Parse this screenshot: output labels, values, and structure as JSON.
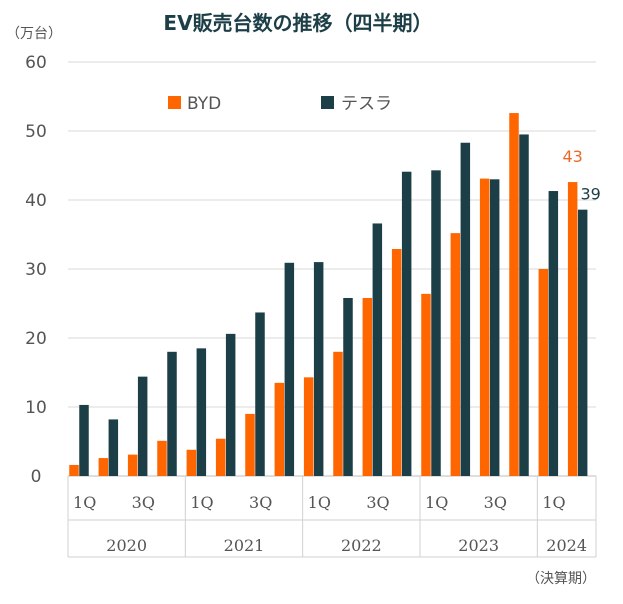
{
  "chart_data": {
    "type": "bar",
    "title": "EV販売台数の推移（四半期）",
    "ylabel": "（万台）",
    "xlabel": "（決算期）",
    "ylim": [
      0,
      60
    ],
    "yticks": [
      0,
      10,
      20,
      30,
      40,
      50,
      60
    ],
    "grid": true,
    "legend_position": "top-left",
    "categories": [
      "2020 1Q",
      "2020 2Q",
      "2020 3Q",
      "2020 4Q",
      "2021 1Q",
      "2021 2Q",
      "2021 3Q",
      "2021 4Q",
      "2022 1Q",
      "2022 2Q",
      "2022 3Q",
      "2022 4Q",
      "2023 1Q",
      "2023 2Q",
      "2023 3Q",
      "2023 4Q",
      "2024 1Q",
      "2024 2Q"
    ],
    "quarter_labels": [
      "1Q",
      "",
      "3Q",
      "",
      "1Q",
      "",
      "3Q",
      "",
      "1Q",
      "",
      "3Q",
      "",
      "1Q",
      "",
      "3Q",
      "",
      "1Q",
      ""
    ],
    "years": [
      {
        "label": "2020",
        "span": 4
      },
      {
        "label": "2021",
        "span": 4
      },
      {
        "label": "2022",
        "span": 4
      },
      {
        "label": "2023",
        "span": 4
      },
      {
        "label": "2024",
        "span": 2
      }
    ],
    "series": [
      {
        "name": "BYD",
        "color": "#ff6600",
        "values": [
          1.6,
          2.6,
          3.1,
          5.1,
          3.8,
          5.4,
          9.0,
          13.5,
          14.3,
          18.0,
          25.8,
          32.9,
          26.4,
          35.2,
          43.1,
          52.6,
          30.0,
          42.6
        ]
      },
      {
        "name": "テスラ",
        "color": "#1c3f47",
        "values": [
          10.3,
          8.2,
          14.4,
          18.0,
          18.5,
          20.6,
          23.7,
          30.9,
          31.0,
          25.8,
          36.6,
          44.1,
          44.3,
          48.3,
          43.0,
          49.5,
          41.3,
          38.6
        ]
      }
    ],
    "annotations": [
      {
        "text": "43",
        "series": "BYD",
        "category_index": 17,
        "color": "#e96a2a"
      },
      {
        "text": "39",
        "series": "テスラ",
        "category_index": 17,
        "color": "#1c3f47"
      }
    ]
  }
}
